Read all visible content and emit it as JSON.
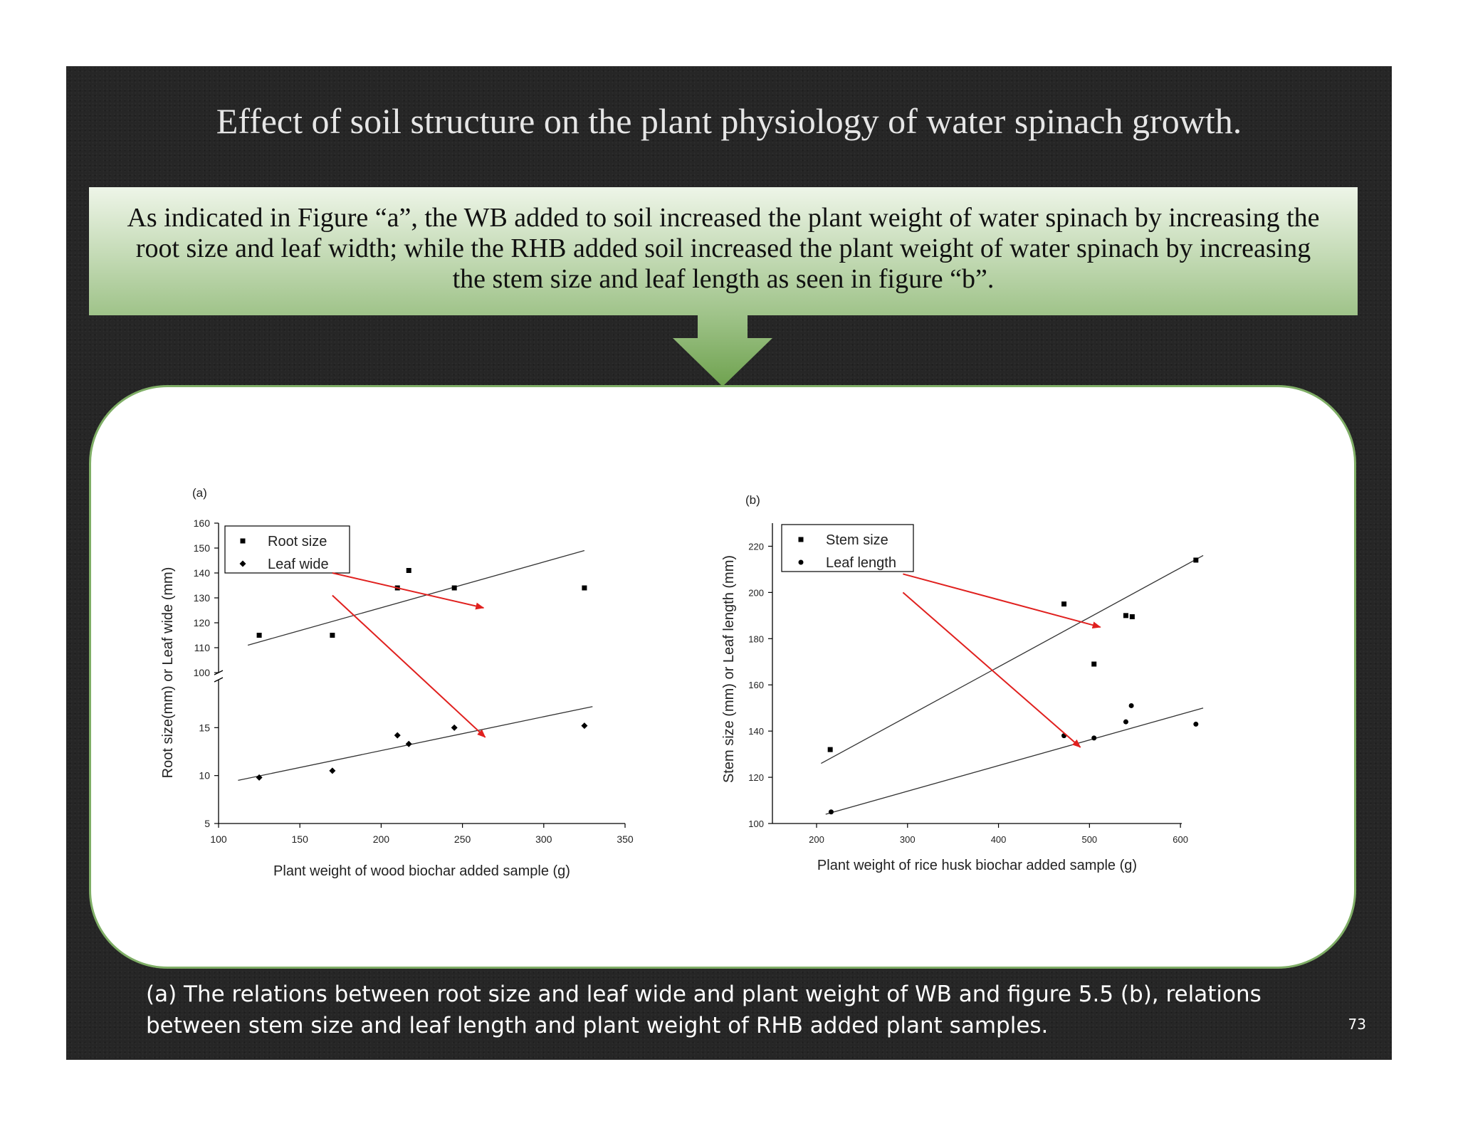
{
  "slide": {
    "title": "Effect of soil structure on the plant physiology of water spinach growth.",
    "callout": "As indicated in Figure “a”, the WB added to soil increased the plant weight of water spinach by increasing the root size and leaf width; while the RHB added soil increased the plant weight of water spinach by increasing the stem size and leaf length as seen in figure “b”.",
    "caption": "(a) The relations between root size and leaf wide and plant weight of WB and figure 5.5 (b), relations between stem size and leaf length and plant weight of RHB added plant samples.",
    "page_number": "73"
  },
  "colors": {
    "callout_top": "#eef5e8",
    "callout_bottom": "#9fc389",
    "accent_green": "#7fae66",
    "annotation_red": "#e0201e"
  },
  "chart_data": [
    {
      "type": "scatter",
      "panel_label": "(a)",
      "xlabel": "Plant weight of wood biochar added sample (g)",
      "ylabel": "Root size(mm) or Leaf wide (mm)",
      "xlim": [
        100,
        350
      ],
      "x_ticks": [
        "100",
        "150",
        "200",
        "250",
        "300",
        "350"
      ],
      "y_ticks_upper": [
        "100",
        "110",
        "120",
        "130",
        "140",
        "150",
        "160"
      ],
      "y_ticks_lower": [
        "5",
        "10",
        "15"
      ],
      "ylim_upper": [
        100,
        160
      ],
      "ylim_lower": [
        5,
        20
      ],
      "broken_axis": true,
      "legend": "top-left",
      "series": [
        {
          "name": "Root size",
          "marker": "square",
          "segment": "upper",
          "points": [
            [
              125,
              115
            ],
            [
              170,
              115
            ],
            [
              210,
              134
            ],
            [
              217,
              141
            ],
            [
              245,
              134
            ],
            [
              325,
              134
            ]
          ],
          "fit": [
            [
              118,
              111
            ],
            [
              325,
              149
            ]
          ]
        },
        {
          "name": "Leaf wide",
          "marker": "diamond",
          "segment": "lower",
          "points": [
            [
              125,
              9.8
            ],
            [
              170,
              10.5
            ],
            [
              210,
              14.2
            ],
            [
              217,
              13.3
            ],
            [
              245,
              15
            ],
            [
              325,
              15.2
            ]
          ],
          "fit": [
            [
              112,
              9.5
            ],
            [
              330,
              17.2
            ]
          ]
        }
      ],
      "annotations": [
        {
          "from": [
            170,
            140
          ],
          "to": [
            263,
            126
          ],
          "segment": "upper",
          "color": "red"
        },
        {
          "from": [
            170,
            131
          ],
          "to": [
            264,
            14
          ],
          "segment_to": "lower",
          "color": "red"
        }
      ]
    },
    {
      "type": "scatter",
      "panel_label": "(b)",
      "xlabel": "Plant weight of rice husk biochar added sample (g)",
      "ylabel": "Stem size (mm) or Leaf length (mm)",
      "xlim": [
        200,
        650
      ],
      "ylim": [
        100,
        230
      ],
      "x_ticks": [
        "200",
        "300",
        "400",
        "500",
        "600"
      ],
      "y_ticks": [
        "100",
        "120",
        "140",
        "160",
        "180",
        "200",
        "220"
      ],
      "legend": "top-left",
      "series": [
        {
          "name": "Stem size",
          "marker": "square",
          "points": [
            [
              215,
              132
            ],
            [
              472,
              195
            ],
            [
              505,
              169
            ],
            [
              540,
              190
            ],
            [
              547,
              189.5
            ],
            [
              617,
              214
            ]
          ],
          "fit": [
            [
              205,
              126
            ],
            [
              625,
              216
            ]
          ]
        },
        {
          "name": "Leaf length",
          "marker": "dot",
          "points": [
            [
              216,
              105
            ],
            [
              472,
              138
            ],
            [
              505,
              137
            ],
            [
              540,
              144
            ],
            [
              546,
              151
            ],
            [
              617,
              143
            ]
          ],
          "fit": [
            [
              210,
              104
            ],
            [
              625,
              150
            ]
          ]
        }
      ],
      "annotations": [
        {
          "from": [
            295,
            208
          ],
          "to": [
            512,
            185
          ],
          "color": "red"
        },
        {
          "from": [
            295,
            200
          ],
          "to": [
            490,
            133
          ],
          "color": "red"
        }
      ]
    }
  ]
}
